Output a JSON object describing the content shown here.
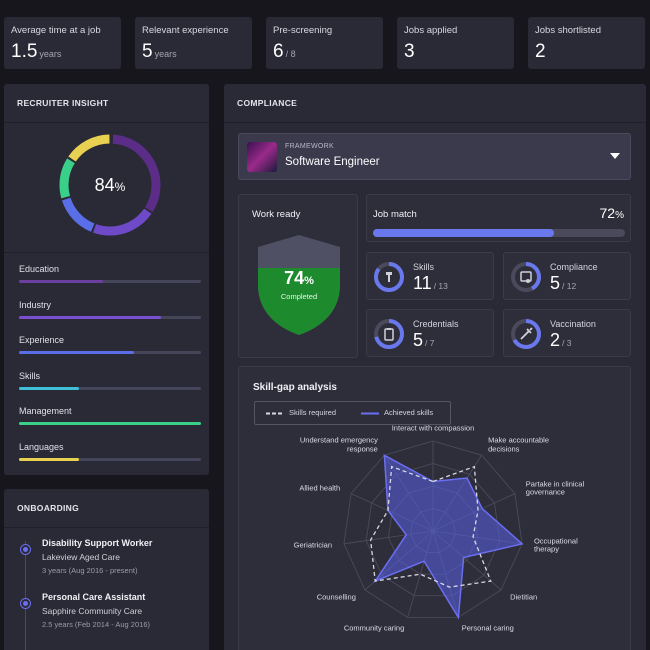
{
  "stats": [
    {
      "label": "Average time at a job",
      "value": "1.5",
      "unit": "years"
    },
    {
      "label": "Relevant experience",
      "value": "5",
      "unit": "years"
    },
    {
      "label": "Pre-screening",
      "value": "6",
      "unit": "/ 8"
    },
    {
      "label": "Jobs applied",
      "value": "3",
      "unit": ""
    },
    {
      "label": "Jobs shortlisted",
      "value": "2",
      "unit": ""
    }
  ],
  "insight": {
    "title": "RECRUITER INSIGHT",
    "score": "84",
    "score_unit": "%",
    "bars": [
      {
        "label": "Education",
        "level": 0.46,
        "color": "#6a3fa0"
      },
      {
        "label": "Industry",
        "level": 0.78,
        "color": "#7a4fd0"
      },
      {
        "label": "Experience",
        "level": 0.63,
        "color": "#5a6ee8"
      },
      {
        "label": "Skills",
        "level": 0.33,
        "color": "#3fc0d8"
      },
      {
        "label": "Management",
        "level": 1.0,
        "color": "#3ad08a"
      },
      {
        "label": "Languages",
        "level": 0.33,
        "color": "#e8d050"
      }
    ]
  },
  "onboarding": {
    "title": "ONBOARDING",
    "items": [
      {
        "role": "Disability Support Worker",
        "org": "Lakeview Aged Care",
        "period": "3 years (Aug 2016 - present)"
      },
      {
        "role": "Personal Care Assistant",
        "org": "Sapphire Community Care",
        "period": "2.5 years (Feb 2014 - Aug 2016)"
      }
    ]
  },
  "compliance": {
    "title": "COMPLIANCE",
    "framework_label": "FRAMEWORK",
    "framework_value": "Software Engineer",
    "work_ready": {
      "title": "Work ready",
      "value": "74",
      "unit": "%",
      "caption": "Completed"
    },
    "job_match": {
      "title": "Job match",
      "value": "72",
      "unit": "%",
      "level": 0.72
    },
    "metrics": [
      {
        "label": "Skills",
        "value": "11",
        "total": "/ 13",
        "icon": "wrench-icon",
        "level": 0.85
      },
      {
        "label": "Compliance",
        "value": "5",
        "total": "/ 12",
        "icon": "certificate-icon",
        "level": 0.42
      },
      {
        "label": "Credentials",
        "value": "5",
        "total": "/ 7",
        "icon": "clipboard-icon",
        "level": 0.71
      },
      {
        "label": "Vaccination",
        "value": "2",
        "total": "/ 3",
        "icon": "syringe-icon",
        "level": 0.67
      }
    ]
  },
  "skill_gap": {
    "title": "Skill-gap analysis",
    "legend_required": "Skills required",
    "legend_achieved": "Achieved skills",
    "colors": {
      "required": "#d8d8e2",
      "achieved": "#6a6ef0"
    }
  },
  "chart_data": {
    "type": "radar",
    "categories": [
      "Interact with compassion",
      "Make accountable decisions",
      "Partake in clinical governance",
      "Occupational therapy",
      "Dietitian",
      "Personal caring",
      "Community caring",
      "Counselling",
      "Geriatrician",
      "Allied health",
      "Understand emergency response"
    ],
    "series": [
      {
        "name": "Skills required",
        "values": [
          0.55,
          0.85,
          0.55,
          0.45,
          0.85,
          0.65,
          0.5,
          0.85,
          0.7,
          0.55,
          0.85
        ]
      },
      {
        "name": "Achieved skills",
        "values": [
          0.55,
          0.7,
          0.6,
          1.0,
          0.45,
          1.0,
          0.35,
          0.85,
          0.3,
          0.55,
          1.0
        ]
      }
    ],
    "ylim": [
      0,
      1
    ]
  }
}
